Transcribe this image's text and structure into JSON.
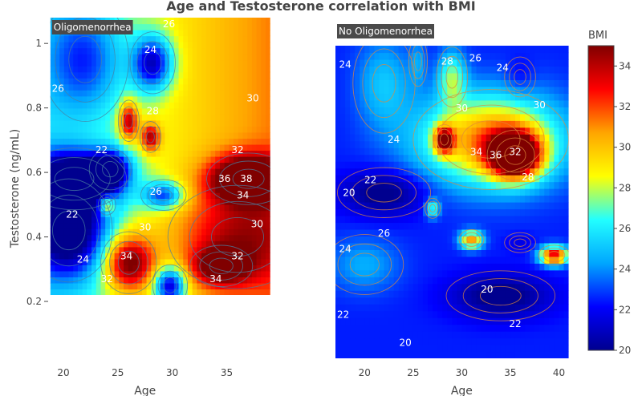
{
  "chart_data": {
    "type": "heatmap",
    "title": "Age and Testosterone correlation with BMI",
    "colorbar": {
      "title": "BMI",
      "range": [
        20,
        35
      ],
      "ticks": [
        20,
        22,
        24,
        26,
        28,
        30,
        32,
        34
      ],
      "colorscale": [
        "#00008f",
        "#0000ff",
        "#00a6ff",
        "#22ffff",
        "#ffff00",
        "#ffa500",
        "#ff0000",
        "#800000"
      ]
    },
    "panels": [
      {
        "label": "Oligomenorrhea",
        "xlabel": "Age",
        "ylabel": "Testosterone (ng/mL)",
        "xticks": [
          20,
          25,
          30,
          35
        ],
        "yticks": [
          0.2,
          0.4,
          0.6,
          0.8,
          1
        ],
        "xlim": [
          18.6,
          40.2
        ],
        "ylim": [
          0.2,
          1.08
        ],
        "xrange": [
          18.8,
          39.0
        ],
        "yrange": [
          0.22,
          1.08
        ],
        "background": 29,
        "hotspots": [
          {
            "age": 28.2,
            "t": 0.94,
            "bmi": 21.5,
            "sx": 1.3,
            "sy": 0.06
          },
          {
            "age": 26.0,
            "t": 0.32,
            "bmi": 36.5,
            "sx": 1.6,
            "sy": 0.06
          },
          {
            "age": 24.3,
            "t": 0.61,
            "bmi": 22.0,
            "sx": 1.2,
            "sy": 0.04
          },
          {
            "age": 26.0,
            "t": 0.76,
            "bmi": 35.5,
            "sx": 0.6,
            "sy": 0.04
          },
          {
            "age": 37.0,
            "t": 0.58,
            "bmi": 38.5,
            "sx": 2.4,
            "sy": 0.05
          },
          {
            "age": 29.2,
            "t": 0.53,
            "bmi": 23.0,
            "sx": 1.3,
            "sy": 0.03
          },
          {
            "age": 24.0,
            "t": 0.5,
            "bmi": 34.0,
            "sx": 0.5,
            "sy": 0.02
          },
          {
            "age": 20.5,
            "t": 0.42,
            "bmi": 20.0,
            "sx": 2.5,
            "sy": 0.1
          },
          {
            "age": 34.5,
            "t": 0.31,
            "bmi": 34.5,
            "sx": 1.8,
            "sy": 0.04
          },
          {
            "age": 29.8,
            "t": 0.25,
            "bmi": 21.0,
            "sx": 1.0,
            "sy": 0.04
          },
          {
            "age": 21.0,
            "t": 0.58,
            "bmi": 19.5,
            "sx": 3.0,
            "sy": 0.06
          },
          {
            "age": 36.0,
            "t": 0.4,
            "bmi": 33.0,
            "sx": 4.0,
            "sy": 0.1
          },
          {
            "age": 28.0,
            "t": 0.71,
            "bmi": 35.0,
            "sx": 0.6,
            "sy": 0.03
          },
          {
            "age": 22.0,
            "t": 0.95,
            "bmi": 24.5,
            "sx": 2.5,
            "sy": 0.12
          }
        ],
        "contour_labels": [
          {
            "text": "26",
            "age": 29.7,
            "t": 1.06
          },
          {
            "text": "24",
            "age": 28.0,
            "t": 0.98
          },
          {
            "text": "26",
            "age": 19.5,
            "t": 0.86
          },
          {
            "text": "30",
            "age": 37.4,
            "t": 0.83
          },
          {
            "text": "28",
            "age": 28.2,
            "t": 0.79
          },
          {
            "text": "22",
            "age": 23.5,
            "t": 0.67
          },
          {
            "text": "32",
            "age": 36.0,
            "t": 0.67
          },
          {
            "text": "26",
            "age": 28.5,
            "t": 0.54
          },
          {
            "text": "36",
            "age": 34.8,
            "t": 0.58
          },
          {
            "text": "38",
            "age": 36.8,
            "t": 0.58
          },
          {
            "text": "34",
            "age": 36.5,
            "t": 0.53
          },
          {
            "text": "22",
            "age": 20.8,
            "t": 0.47
          },
          {
            "text": "30",
            "age": 37.8,
            "t": 0.44
          },
          {
            "text": "30",
            "age": 27.5,
            "t": 0.43
          },
          {
            "text": "24",
            "age": 21.8,
            "t": 0.33
          },
          {
            "text": "34",
            "age": 25.8,
            "t": 0.34
          },
          {
            "text": "32",
            "age": 36.0,
            "t": 0.34
          },
          {
            "text": "32",
            "age": 24.0,
            "t": 0.27
          },
          {
            "text": "34",
            "age": 34.0,
            "t": 0.27
          }
        ]
      },
      {
        "label": "No Oligomenorrhea",
        "xlabel": "Age",
        "xticks": [
          20,
          25,
          30,
          35,
          40
        ],
        "xlim": [
          17.0,
          41.2
        ],
        "xrange": [
          17.0,
          41.0
        ],
        "yrange": [
          0.0,
          1.0
        ],
        "background": 22.5,
        "hotspots": [
          {
            "age": 33.0,
            "t": 0.7,
            "bmi": 31.5,
            "sx": 5.0,
            "sy": 0.1
          },
          {
            "age": 35.5,
            "t": 0.65,
            "bmi": 36.5,
            "sx": 1.8,
            "sy": 0.05
          },
          {
            "age": 36.0,
            "t": 0.9,
            "bmi": 21.5,
            "sx": 1.0,
            "sy": 0.04
          },
          {
            "age": 22.0,
            "t": 0.53,
            "bmi": 19.5,
            "sx": 3.0,
            "sy": 0.05
          },
          {
            "age": 34.0,
            "t": 0.2,
            "bmi": 19.5,
            "sx": 3.5,
            "sy": 0.05
          },
          {
            "age": 39.5,
            "t": 0.33,
            "bmi": 34.0,
            "sx": 1.0,
            "sy": 0.02
          },
          {
            "age": 31.0,
            "t": 0.38,
            "bmi": 31.0,
            "sx": 0.8,
            "sy": 0.02
          },
          {
            "age": 28.2,
            "t": 0.7,
            "bmi": 32.0,
            "sx": 0.7,
            "sy": 0.03
          },
          {
            "age": 27.0,
            "t": 0.48,
            "bmi": 27.0,
            "sx": 0.5,
            "sy": 0.02
          },
          {
            "age": 22.0,
            "t": 0.88,
            "bmi": 25.0,
            "sx": 2.0,
            "sy": 0.1
          },
          {
            "age": 25.5,
            "t": 0.95,
            "bmi": 24.0,
            "sx": 0.6,
            "sy": 0.05
          },
          {
            "age": 29.0,
            "t": 0.9,
            "bmi": 27.0,
            "sx": 1.0,
            "sy": 0.06
          },
          {
            "age": 20.0,
            "t": 0.3,
            "bmi": 24.5,
            "sx": 2.5,
            "sy": 0.06
          },
          {
            "age": 36.0,
            "t": 0.37,
            "bmi": 21.5,
            "sx": 1.0,
            "sy": 0.02
          }
        ],
        "contour_labels": [
          {
            "text": "24",
            "age": 18.0,
            "t": 0.94
          },
          {
            "text": "28",
            "age": 28.5,
            "t": 0.95
          },
          {
            "text": "26",
            "age": 31.4,
            "t": 0.96
          },
          {
            "text": "24",
            "age": 34.2,
            "t": 0.93
          },
          {
            "text": "30",
            "age": 30.0,
            "t": 0.8
          },
          {
            "text": "30",
            "age": 38.0,
            "t": 0.81
          },
          {
            "text": "24",
            "age": 23.0,
            "t": 0.7
          },
          {
            "text": "34",
            "age": 31.5,
            "t": 0.66
          },
          {
            "text": "36",
            "age": 33.5,
            "t": 0.65
          },
          {
            "text": "32",
            "age": 35.5,
            "t": 0.66
          },
          {
            "text": "28",
            "age": 36.8,
            "t": 0.58
          },
          {
            "text": "22",
            "age": 20.6,
            "t": 0.57
          },
          {
            "text": "20",
            "age": 18.4,
            "t": 0.53
          },
          {
            "text": "26",
            "age": 22.0,
            "t": 0.4
          },
          {
            "text": "24",
            "age": 18.0,
            "t": 0.35
          },
          {
            "text": "20",
            "age": 32.6,
            "t": 0.22
          },
          {
            "text": "22",
            "age": 17.8,
            "t": 0.14
          },
          {
            "text": "22",
            "age": 35.5,
            "t": 0.11
          },
          {
            "text": "20",
            "age": 24.2,
            "t": 0.05
          }
        ]
      }
    ]
  }
}
